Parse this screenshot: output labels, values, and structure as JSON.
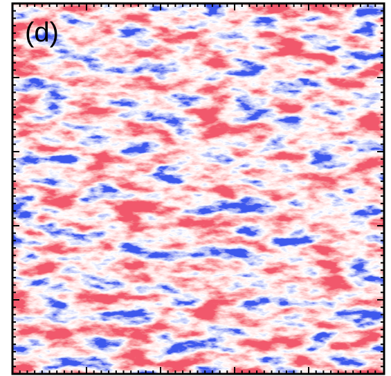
{
  "panel_label": "(d)"
}
